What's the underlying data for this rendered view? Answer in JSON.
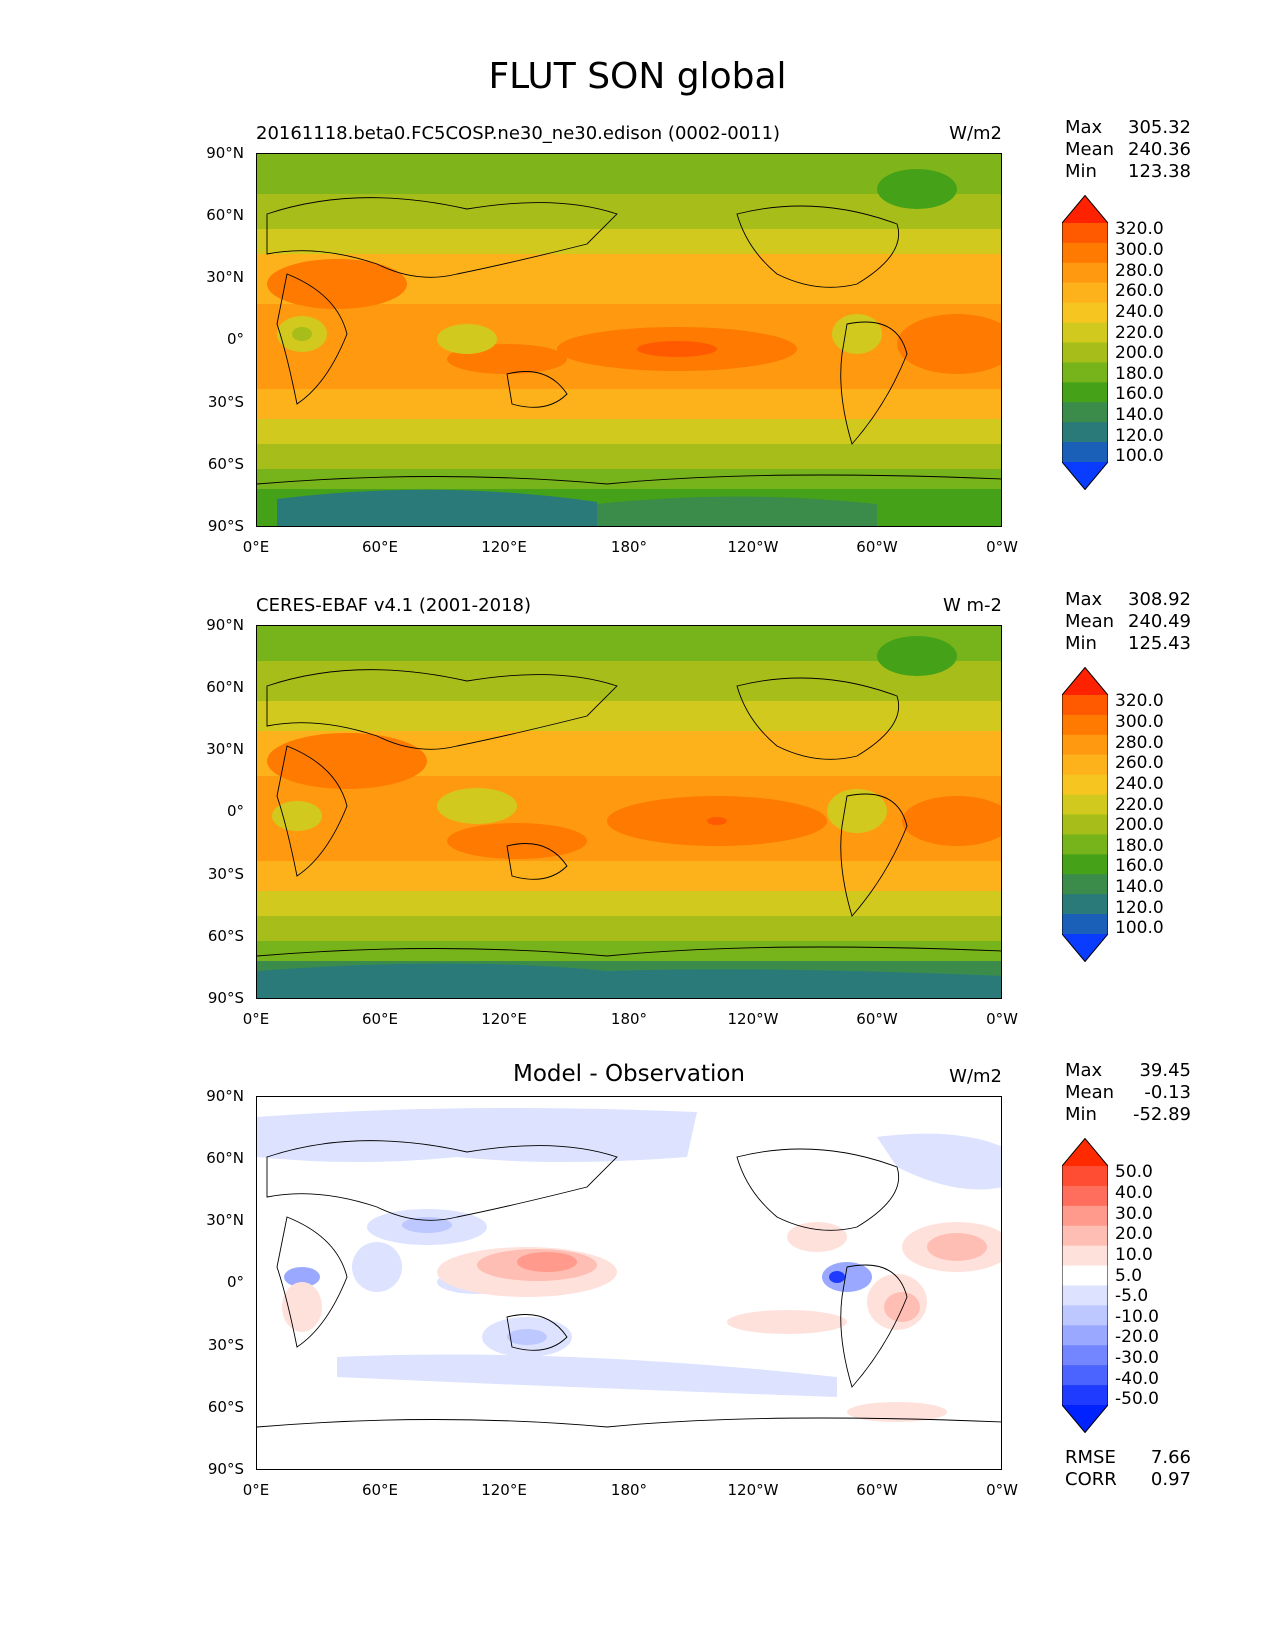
{
  "figure": {
    "title": "FLUT SON global"
  },
  "axes": {
    "y_ticks": [
      "90°N",
      "60°N",
      "30°N",
      "0°",
      "30°S",
      "60°S",
      "90°S"
    ],
    "x_ticks": [
      "0°E",
      "60°E",
      "120°E",
      "180°",
      "120°W",
      "60°W",
      "0°W"
    ]
  },
  "panels": [
    {
      "title": "20161118.beta0.FC5COSP.ne30_ne30.edison (0002-0011)",
      "units": "W/m2",
      "stats": {
        "max_label": "Max",
        "max": "305.32",
        "mean_label": "Mean",
        "mean": "240.36",
        "min_label": "Min",
        "min": "123.38"
      }
    },
    {
      "title": "CERES-EBAF v4.1 (2001-2018)",
      "units": "W m-2",
      "stats": {
        "max_label": "Max",
        "max": "308.92",
        "mean_label": "Mean",
        "mean": "240.49",
        "min_label": "Min",
        "min": "125.43"
      }
    },
    {
      "title": "Model - Observation",
      "units": "W/m2",
      "stats": {
        "max_label": "Max",
        "max": "39.45",
        "mean_label": "Mean",
        "mean": "-0.13",
        "min_label": "Min",
        "min": "-52.89"
      },
      "extra": {
        "rmse_label": "RMSE",
        "rmse": "7.66",
        "corr_label": "CORR",
        "corr": "0.97"
      }
    }
  ],
  "colorbars": {
    "field": {
      "labels": [
        "320.0",
        "300.0",
        "280.0",
        "260.0",
        "240.0",
        "220.0",
        "200.0",
        "180.0",
        "160.0",
        "140.0",
        "120.0",
        "100.0"
      ],
      "colors": [
        "#ff2200",
        "#ff5a00",
        "#ff7a00",
        "#ff9a10",
        "#fdb21c",
        "#f7c520",
        "#d2c91e",
        "#a7be1a",
        "#77b31a",
        "#45a218",
        "#3b8c4a",
        "#2a7a7a",
        "#1a5fb8",
        "#0a3cff"
      ]
    },
    "diff": {
      "labels": [
        "50.0",
        "40.0",
        "30.0",
        "20.0",
        "10.0",
        "5.0",
        "-5.0",
        "-10.0",
        "-20.0",
        "-30.0",
        "-40.0",
        "-50.0"
      ],
      "colors": [
        "#ff2a00",
        "#ff4d33",
        "#ff6e5c",
        "#ff9a8c",
        "#ffbeb3",
        "#ffe1dc",
        "#ffffff",
        "#dde2ff",
        "#bcc8ff",
        "#9aa9ff",
        "#7385ff",
        "#4b63ff",
        "#1e3bff",
        "#0022ff"
      ]
    }
  },
  "chart_data": [
    {
      "type": "heatmap",
      "title": "20161118.beta0.FC5COSP.ne30_ne30.edison (0002-0011)",
      "units": "W/m2",
      "x_ticks": [
        "0°E",
        "60°E",
        "120°E",
        "180°",
        "120°W",
        "60°W",
        "0°W"
      ],
      "y_ticks": [
        "90°N",
        "60°N",
        "30°N",
        "0°",
        "30°S",
        "60°S",
        "90°S"
      ],
      "xlim": [
        0,
        360
      ],
      "ylim": [
        -90,
        90
      ],
      "levels": [
        100,
        120,
        140,
        160,
        180,
        200,
        220,
        240,
        260,
        280,
        300,
        320
      ],
      "stats": {
        "max": 305.32,
        "mean": 240.36,
        "min": 123.38
      }
    },
    {
      "type": "heatmap",
      "title": "CERES-EBAF v4.1 (2001-2018)",
      "units": "W m-2",
      "x_ticks": [
        "0°E",
        "60°E",
        "120°E",
        "180°",
        "120°W",
        "60°W",
        "0°W"
      ],
      "y_ticks": [
        "90°N",
        "60°N",
        "30°N",
        "0°",
        "30°S",
        "60°S",
        "90°S"
      ],
      "xlim": [
        0,
        360
      ],
      "ylim": [
        -90,
        90
      ],
      "levels": [
        100,
        120,
        140,
        160,
        180,
        200,
        220,
        240,
        260,
        280,
        300,
        320
      ],
      "stats": {
        "max": 308.92,
        "mean": 240.49,
        "min": 125.43
      }
    },
    {
      "type": "heatmap",
      "title": "Model - Observation",
      "units": "W/m2",
      "x_ticks": [
        "0°E",
        "60°E",
        "120°E",
        "180°",
        "120°W",
        "60°W",
        "0°W"
      ],
      "y_ticks": [
        "90°N",
        "60°N",
        "30°N",
        "0°",
        "30°S",
        "60°S",
        "90°S"
      ],
      "xlim": [
        0,
        360
      ],
      "ylim": [
        -90,
        90
      ],
      "levels": [
        -50,
        -40,
        -30,
        -20,
        -10,
        -5,
        5,
        10,
        20,
        30,
        40,
        50
      ],
      "stats": {
        "max": 39.45,
        "mean": -0.13,
        "min": -52.89,
        "rmse": 7.66,
        "corr": 0.97
      }
    }
  ]
}
